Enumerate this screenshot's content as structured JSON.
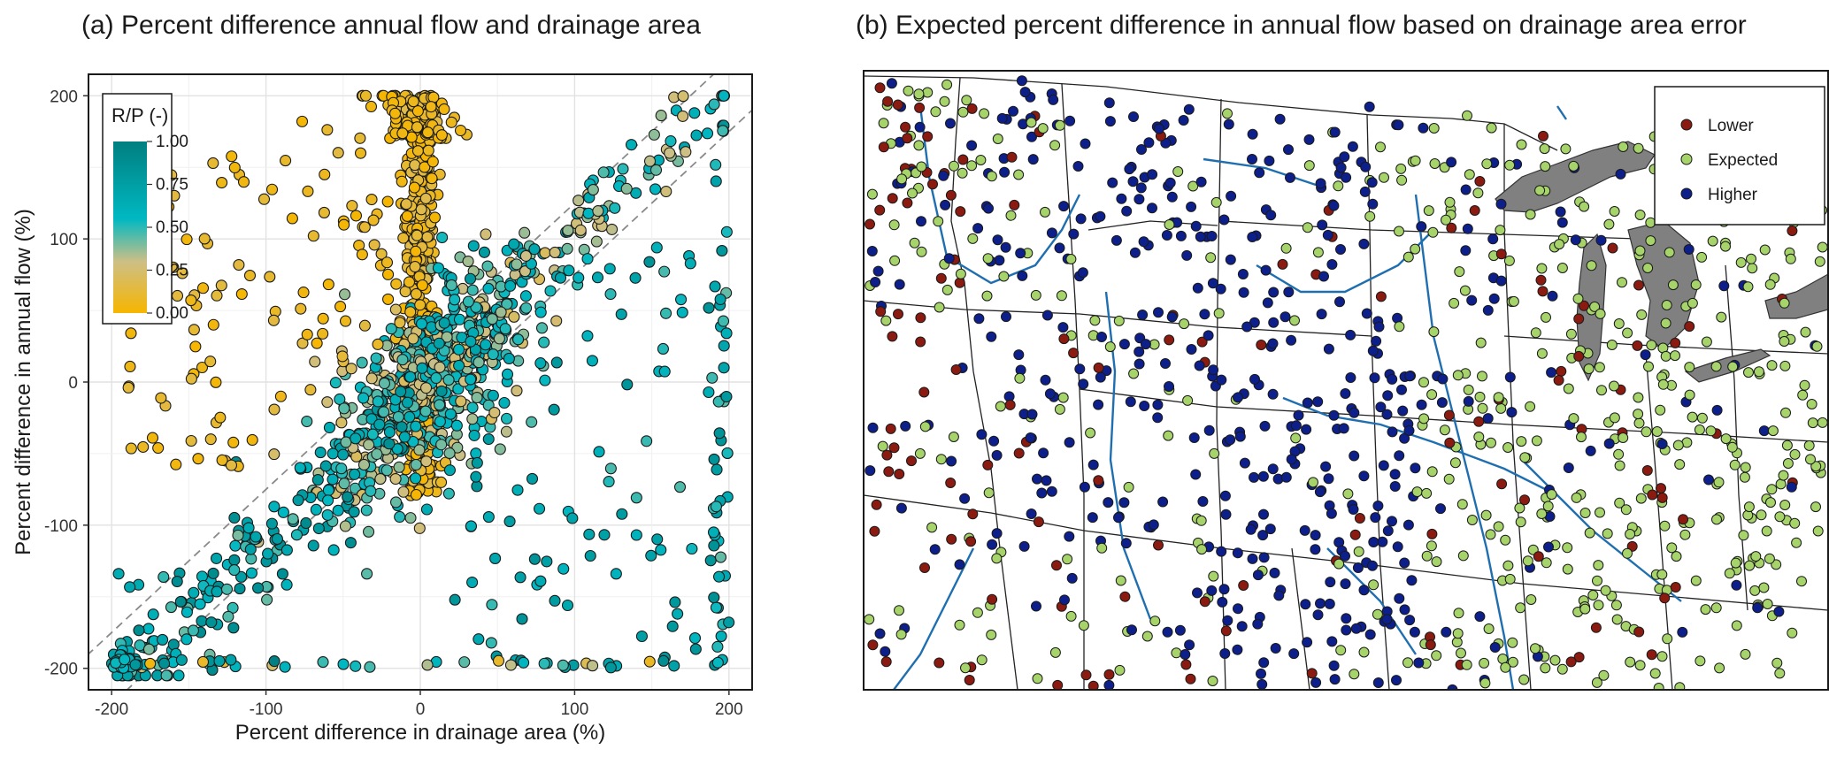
{
  "chart_data": [
    {
      "type": "scatter",
      "title": "(a) Percent difference annual flow and drainage area",
      "xlabel": "Percent difference in drainage area (%)",
      "ylabel": "Percent difference in annual flow (%)",
      "xlim": [
        -215,
        215
      ],
      "ylim": [
        -215,
        215
      ],
      "xticks": [
        -200,
        -100,
        0,
        100,
        200
      ],
      "yticks": [
        -200,
        -100,
        0,
        100,
        200
      ],
      "grid": true,
      "reference_lines": [
        {
          "style": "dashed",
          "slope": 1,
          "intercept": 25
        },
        {
          "style": "dashed",
          "slope": 1,
          "intercept": -25
        }
      ],
      "colorbar": {
        "title": "R/P (-)",
        "ticks": [
          "1.00",
          "0.75",
          "0.50",
          "0.25",
          "0.00"
        ],
        "range": [
          0,
          1
        ],
        "colors": [
          "#f6b600",
          "#c9c07a",
          "#00b8c2",
          "#007f80"
        ],
        "placement": "top-left"
      }
    },
    {
      "type": "scatter",
      "title": "(b) Expected percent difference in annual flow based on drainage area error",
      "legend": {
        "placement": "top-right",
        "entries": [
          {
            "name": "Lower",
            "color": "#8b1a10"
          },
          {
            "name": "Expected",
            "color": "#a6d36a"
          },
          {
            "name": "Higher",
            "color": "#0d1f8a"
          }
        ]
      }
    }
  ]
}
